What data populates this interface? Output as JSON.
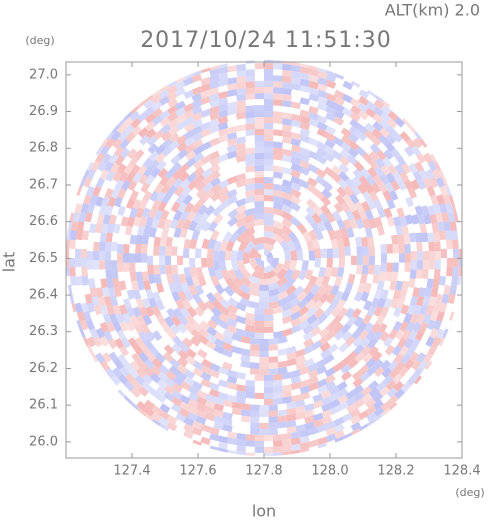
{
  "chart_data": {
    "type": "radar-ppi",
    "altitude": "ALT(km) 2.0",
    "title": "2017/10/24 11:51:30",
    "ylabel": "lat",
    "yunit": "(deg)",
    "xlabel": "lon",
    "xunit": "(deg)",
    "xlim": [
      127.2,
      128.4
    ],
    "ylim": [
      25.956,
      27.035
    ],
    "xticks": [
      127.4,
      127.6,
      127.8,
      {
        "value": 128,
        "label": "128.0"
      },
      128.2,
      128.4
    ],
    "yticks": [
      {
        "value": 26,
        "label": "26.0"
      },
      26.1,
      26.2,
      26.3,
      26.4,
      26.5,
      26.6,
      26.7,
      26.8,
      26.9,
      {
        "value": 27,
        "label": "27.0"
      }
    ]
  }
}
